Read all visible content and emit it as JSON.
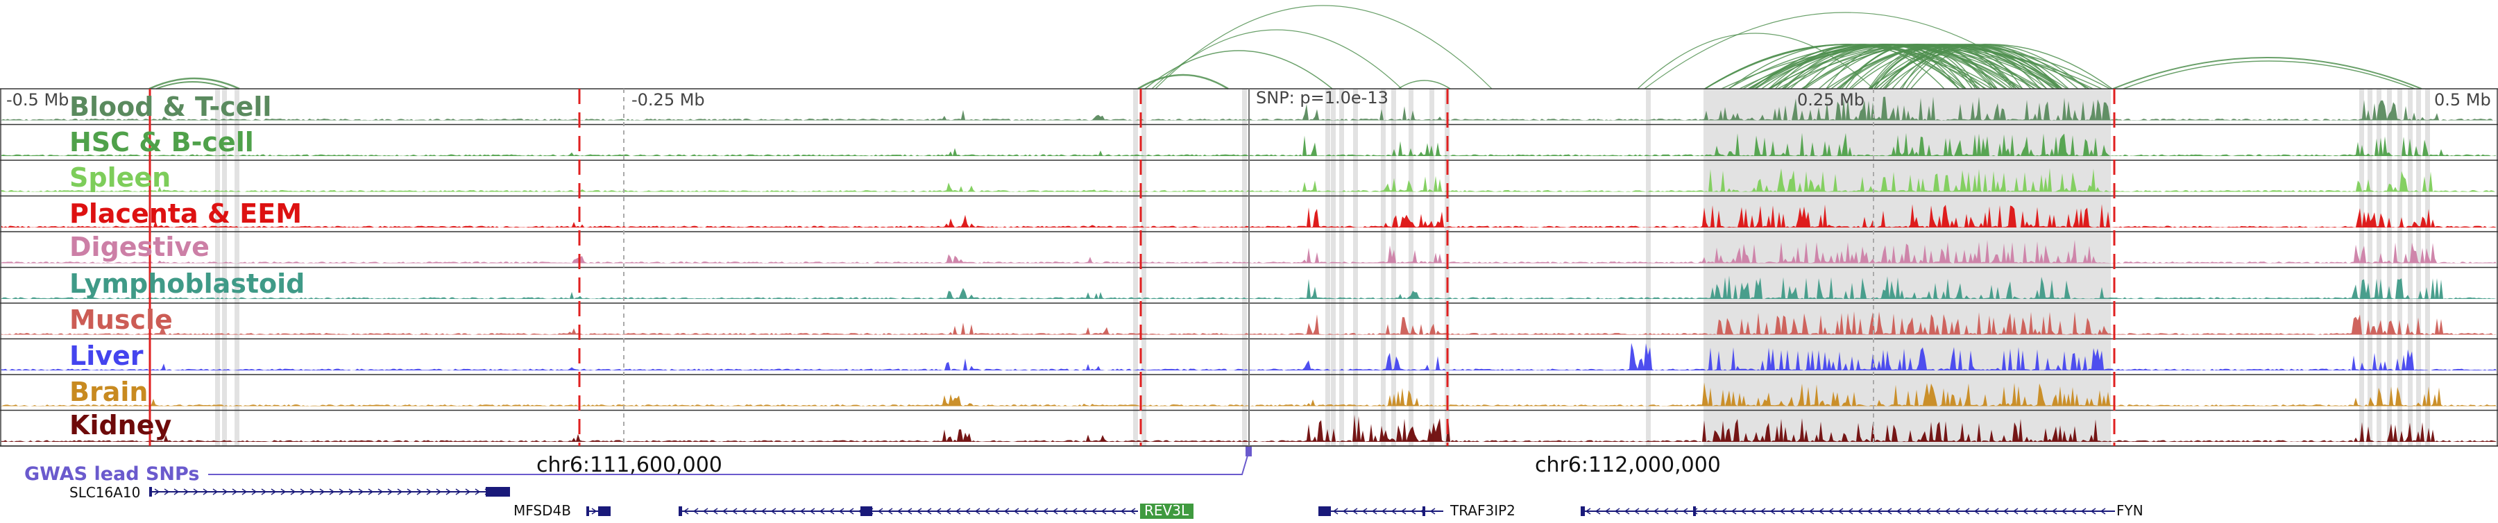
{
  "region": {
    "scale_labels": [
      "-0.5 Mb",
      "-0.25 Mb",
      "0.25 Mb",
      "0.5 Mb"
    ],
    "snp_label": "SNP: p=1.0e-13",
    "coordinates": [
      "chr6:111,600,000",
      "chr6:112,000,000"
    ]
  },
  "tracks": [
    {
      "label": "Blood & T-cell",
      "color": "#5a8a5e"
    },
    {
      "label": "HSC & B-cell",
      "color": "#4fa14a"
    },
    {
      "label": "Spleen",
      "color": "#7dcd5a"
    },
    {
      "label": "Placenta & EEM",
      "color": "#dd1111"
    },
    {
      "label": "Digestive",
      "color": "#cc7fa6"
    },
    {
      "label": "Lymphoblastoid",
      "color": "#3f9a87"
    },
    {
      "label": "Muscle",
      "color": "#cc5c55"
    },
    {
      "label": "Liver",
      "color": "#4444ee"
    },
    {
      "label": "Brain",
      "color": "#c88a20"
    },
    {
      "label": "Kidney",
      "color": "#6e0a0a"
    }
  ],
  "gwas": {
    "label": "GWAS lead SNPs",
    "color": "#6a5acd"
  },
  "genes": [
    {
      "name": "SLC16A10",
      "highlight": false
    },
    {
      "name": "MFSD4B",
      "highlight": false
    },
    {
      "name": "REV3L",
      "highlight": true
    },
    {
      "name": "TRAF3IP2",
      "highlight": false
    },
    {
      "name": "FYN",
      "highlight": false
    }
  ],
  "colors": {
    "arc": "#4f8f4f",
    "highlight_region": "#e2e2e2",
    "marker": "#e02020",
    "gene": "#1a1a7a",
    "rev3l_bg": "#3f9a3f"
  }
}
